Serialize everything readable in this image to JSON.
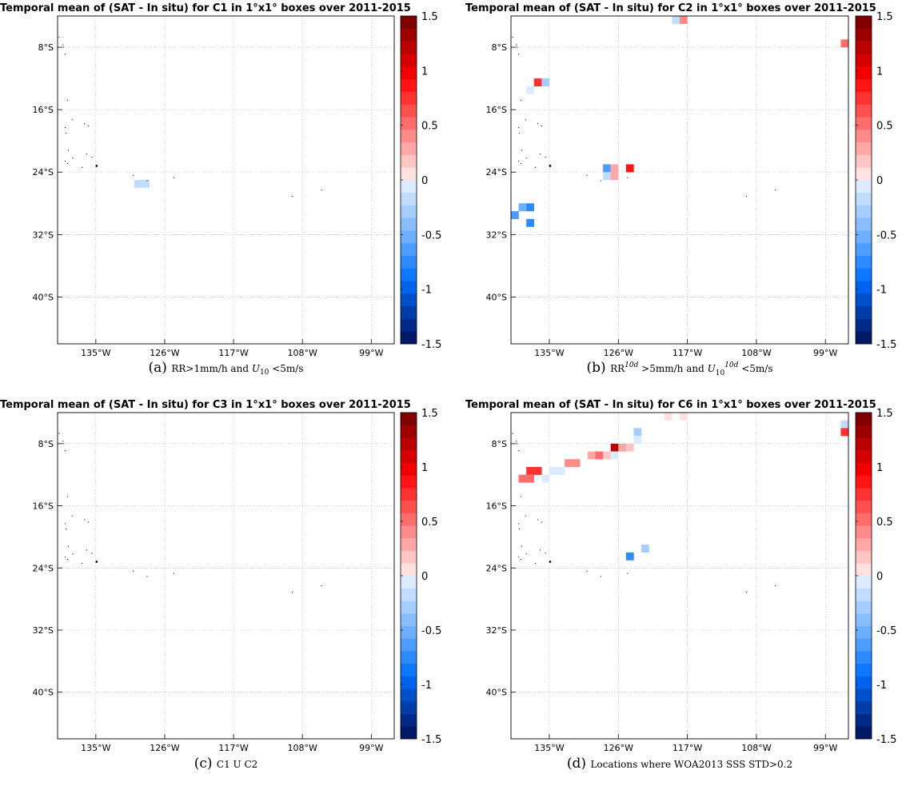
{
  "colorbar": {
    "min": -1.5,
    "max": 1.5,
    "ticks": [
      "1.5",
      "1",
      "0.5",
      "0",
      "-0.5",
      "-1",
      "-1.5"
    ]
  },
  "chart_data": [
    {
      "type": "heatmap",
      "panel": "a",
      "title": "Temporal mean of (SAT - In situ) for C1 in 1°x1° boxes over 2011-2015",
      "caption_letter": "(a)",
      "caption_parts": [
        "RR>1mm/h and ",
        "U",
        "10",
        " <5m/s"
      ],
      "x_ticks": [
        "135°W",
        "126°W",
        "117°W",
        "108°W",
        "99°W"
      ],
      "y_ticks": [
        "8°S",
        "16°S",
        "24°S",
        "32°S",
        "40°S"
      ],
      "xlim": [
        -140,
        -96
      ],
      "ylim": [
        -46,
        -4
      ],
      "cells": [
        {
          "lon": -129.5,
          "lat": -25.5,
          "value": -0.2
        },
        {
          "lon": -128.5,
          "lat": -25.5,
          "value": -0.2
        }
      ]
    },
    {
      "type": "heatmap",
      "panel": "b",
      "title": "Temporal mean of (SAT - In situ) for C2 in 1°x1° boxes over 2011-2015",
      "caption_letter": "(b)",
      "caption_parts": [
        "RR",
        "10d",
        " >5mm/h and ",
        "U",
        "10",
        "10d",
        " <5m/s"
      ],
      "x_ticks": [
        "135°W",
        "126°W",
        "117°W",
        "108°W",
        "99°W"
      ],
      "y_ticks": [
        "8°S",
        "16°S",
        "24°S",
        "32°S",
        "40°S"
      ],
      "xlim": [
        -140,
        -96
      ],
      "ylim": [
        -46,
        -4
      ],
      "cells": [
        {
          "lon": -118.5,
          "lat": -4.5,
          "value": -0.2
        },
        {
          "lon": -117.5,
          "lat": -4.5,
          "value": 0.4
        },
        {
          "lon": -96.5,
          "lat": -7.5,
          "value": 0.5
        },
        {
          "lon": -136.5,
          "lat": -12.5,
          "value": 0.8
        },
        {
          "lon": -135.5,
          "lat": -12.5,
          "value": -0.3
        },
        {
          "lon": -137.5,
          "lat": -13.5,
          "value": -0.1
        },
        {
          "lon": -127.5,
          "lat": -23.5,
          "value": -0.6
        },
        {
          "lon": -126.5,
          "lat": -23.5,
          "value": 0.3
        },
        {
          "lon": -124.5,
          "lat": -23.5,
          "value": 0.9
        },
        {
          "lon": -127.5,
          "lat": -24.5,
          "value": -0.2
        },
        {
          "lon": -126.5,
          "lat": -24.5,
          "value": 0.3
        },
        {
          "lon": -138.5,
          "lat": -28.5,
          "value": -0.5
        },
        {
          "lon": -137.5,
          "lat": -28.5,
          "value": -0.8
        },
        {
          "lon": -139.5,
          "lat": -29.5,
          "value": -0.6
        },
        {
          "lon": -137.5,
          "lat": -30.5,
          "value": -0.7
        }
      ]
    },
    {
      "type": "heatmap",
      "panel": "c",
      "title": "Temporal mean of (SAT - In situ) for C3 in 1°x1° boxes over 2011-2015",
      "caption_letter": "(c)",
      "caption_parts": [
        "C1 U C2"
      ],
      "x_ticks": [
        "135°W",
        "126°W",
        "117°W",
        "108°W",
        "99°W"
      ],
      "y_ticks": [
        "8°S",
        "16°S",
        "24°S",
        "32°S",
        "40°S"
      ],
      "xlim": [
        -140,
        -96
      ],
      "ylim": [
        -46,
        -4
      ],
      "cells": []
    },
    {
      "type": "heatmap",
      "panel": "d",
      "title": "Temporal mean of (SAT - In situ) for C6 in 1°x1° boxes over 2011-2015",
      "caption_letter": "(d)",
      "caption_parts": [
        "Locations where WOA2013 SSS STD>0.2"
      ],
      "x_ticks": [
        "135°W",
        "126°W",
        "117°W",
        "108°W",
        "99°W"
      ],
      "y_ticks": [
        "8°S",
        "16°S",
        "24°S",
        "32°S",
        "40°S"
      ],
      "xlim": [
        -140,
        -96
      ],
      "ylim": [
        -46,
        -4
      ],
      "cells": [
        {
          "lon": -119.5,
          "lat": -4.5,
          "value": 0.1
        },
        {
          "lon": -117.5,
          "lat": -4.5,
          "value": 0.1
        },
        {
          "lon": -96.5,
          "lat": -5.5,
          "value": -0.2
        },
        {
          "lon": -96.5,
          "lat": -6.5,
          "value": 0.7
        },
        {
          "lon": -123.5,
          "lat": -6.5,
          "value": -0.3
        },
        {
          "lon": -123.5,
          "lat": -7.5,
          "value": -0.1
        },
        {
          "lon": -126.5,
          "lat": -8.5,
          "value": 1.2
        },
        {
          "lon": -125.5,
          "lat": -8.5,
          "value": 0.3
        },
        {
          "lon": -124.5,
          "lat": -8.5,
          "value": 0.2
        },
        {
          "lon": -129.5,
          "lat": -9.5,
          "value": 0.3
        },
        {
          "lon": -128.5,
          "lat": -9.5,
          "value": 0.5
        },
        {
          "lon": -127.5,
          "lat": -9.5,
          "value": 0.2
        },
        {
          "lon": -126.5,
          "lat": -9.5,
          "value": -0.1
        },
        {
          "lon": -132.5,
          "lat": -10.5,
          "value": 0.4
        },
        {
          "lon": -131.5,
          "lat": -10.5,
          "value": 0.4
        },
        {
          "lon": -134.5,
          "lat": -11.5,
          "value": -0.1
        },
        {
          "lon": -133.5,
          "lat": -11.5,
          "value": -0.1
        },
        {
          "lon": -137.5,
          "lat": -11.5,
          "value": 0.7
        },
        {
          "lon": -136.5,
          "lat": -11.5,
          "value": 0.7
        },
        {
          "lon": -138.5,
          "lat": -12.5,
          "value": 0.5
        },
        {
          "lon": -137.5,
          "lat": -12.5,
          "value": 0.5
        },
        {
          "lon": -135.5,
          "lat": -12.5,
          "value": -0.1
        },
        {
          "lon": -122.5,
          "lat": -21.5,
          "value": -0.3
        },
        {
          "lon": -124.5,
          "lat": -22.5,
          "value": -0.8
        }
      ]
    }
  ]
}
